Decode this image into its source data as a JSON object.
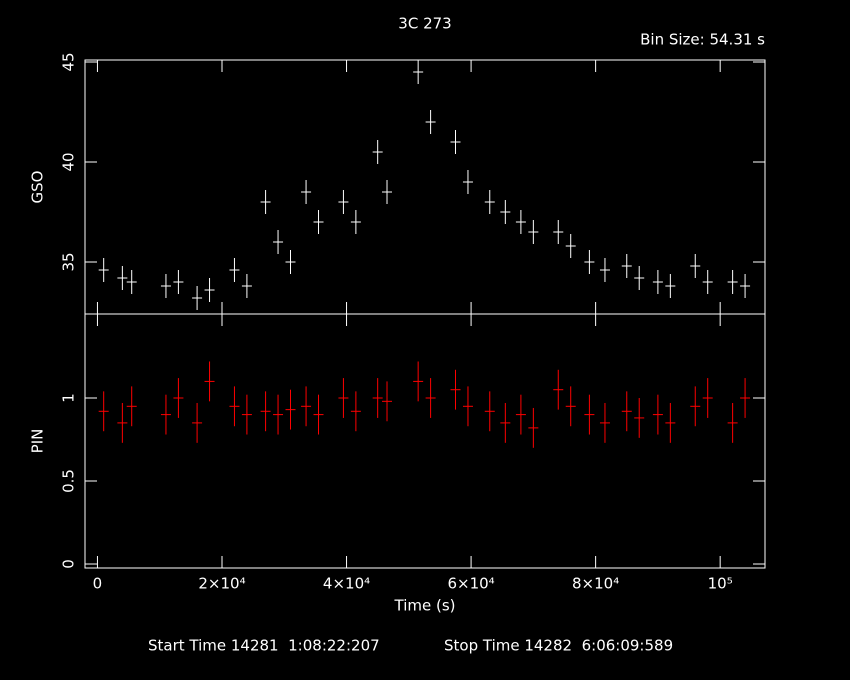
{
  "chart_data": [
    {
      "type": "errorbar",
      "title": "3C 273",
      "subtitle": "Bin Size: 54.31 s",
      "ylabel": "GSO",
      "color": "#ffffff",
      "x": [
        1000,
        4000,
        5500,
        11000,
        13000,
        16000,
        18000,
        22000,
        24000,
        27000,
        29000,
        31000,
        33500,
        35500,
        39500,
        41500,
        45000,
        46500,
        51500,
        53500,
        57500,
        59500,
        63000,
        65500,
        68000,
        70000,
        74000,
        76000,
        79000,
        81500,
        85000,
        87000,
        90000,
        92000,
        96000,
        98000,
        102000,
        104000
      ],
      "values": [
        34.6,
        34.2,
        34.0,
        33.8,
        34.0,
        33.2,
        33.6,
        34.6,
        33.8,
        38.0,
        36.0,
        35.0,
        38.5,
        37.0,
        38.0,
        37.0,
        40.5,
        38.5,
        44.5,
        42.0,
        41.0,
        39.0,
        38.0,
        37.5,
        37.0,
        36.5,
        36.5,
        35.8,
        35.0,
        34.6,
        34.8,
        34.2,
        34.0,
        33.8,
        34.8,
        34.0,
        34.0,
        33.8
      ],
      "errors": [
        0.6,
        0.6,
        0.6,
        0.6,
        0.6,
        0.6,
        0.6,
        0.6,
        0.6,
        0.6,
        0.6,
        0.6,
        0.6,
        0.6,
        0.6,
        0.6,
        0.6,
        0.6,
        0.6,
        0.6,
        0.6,
        0.6,
        0.6,
        0.6,
        0.6,
        0.6,
        0.6,
        0.6,
        0.6,
        0.6,
        0.6,
        0.6,
        0.6,
        0.6,
        0.6,
        0.6,
        0.6,
        0.6
      ],
      "xlim": [
        -2000,
        107200
      ],
      "ylim": [
        32.4,
        45.1
      ],
      "yticks": [
        35,
        40,
        45
      ]
    },
    {
      "type": "errorbar",
      "ylabel": "PIN",
      "xlabel": "Time (s)",
      "color": "#ff0000",
      "x": [
        1000,
        4000,
        5500,
        11000,
        13000,
        16000,
        18000,
        22000,
        24000,
        27000,
        29000,
        31000,
        33500,
        35500,
        39500,
        41500,
        45000,
        46500,
        51500,
        53500,
        57500,
        59500,
        63000,
        65500,
        68000,
        70000,
        74000,
        76000,
        79000,
        81500,
        85000,
        87000,
        90000,
        92000,
        96000,
        98000,
        102000,
        104000
      ],
      "values": [
        0.92,
        0.85,
        0.95,
        0.9,
        1.0,
        0.85,
        1.1,
        0.95,
        0.9,
        0.92,
        0.9,
        0.93,
        0.95,
        0.9,
        1.0,
        0.92,
        1.0,
        0.98,
        1.1,
        1.0,
        1.05,
        0.95,
        0.92,
        0.85,
        0.9,
        0.82,
        1.05,
        0.95,
        0.9,
        0.85,
        0.92,
        0.88,
        0.9,
        0.85,
        0.95,
        1.0,
        0.85,
        1.0
      ],
      "errors": [
        0.12,
        0.12,
        0.12,
        0.12,
        0.12,
        0.12,
        0.12,
        0.12,
        0.12,
        0.12,
        0.12,
        0.12,
        0.12,
        0.12,
        0.12,
        0.12,
        0.12,
        0.12,
        0.12,
        0.12,
        0.12,
        0.12,
        0.12,
        0.12,
        0.12,
        0.12,
        0.12,
        0.12,
        0.12,
        0.12,
        0.12,
        0.12,
        0.12,
        0.12,
        0.12,
        0.12,
        0.12,
        0.12
      ],
      "xlim": [
        -2000,
        107200
      ],
      "ylim": [
        -0.024,
        1.506
      ],
      "yticks": [
        0,
        0.5,
        1
      ],
      "xticks": [
        0,
        {
          "value": 20000,
          "label": "2×10⁴"
        },
        {
          "value": 40000,
          "label": "4×10⁴"
        },
        {
          "value": 60000,
          "label": "6×10⁴"
        },
        {
          "value": 80000,
          "label": "8×10⁴"
        },
        {
          "value": 100000,
          "label": "10⁵"
        }
      ],
      "annotations": [
        "Start Time 14281  1:08:22:207",
        "Stop Time 14282  6:06:09:589"
      ]
    }
  ]
}
